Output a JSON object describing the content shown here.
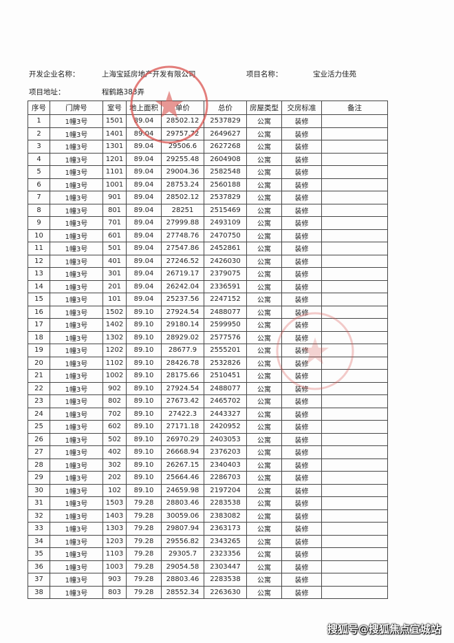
{
  "header": {
    "developer_label": "开发企业名称：",
    "developer": "上海宝延房地产开发有限公司",
    "project_label": "项目名称：",
    "project": "宝业活力佳苑",
    "address_label": "项目地址：",
    "address": "程鹤路383弄"
  },
  "table": {
    "columns": [
      "序号",
      "门牌号",
      "室号",
      "地上面积",
      "单价",
      "总价",
      "房屋类型",
      "交房标准",
      "备注"
    ],
    "rows": [
      [
        "1",
        "1幢3号",
        "1501",
        "89.04",
        "28502.12",
        "2537829",
        "公寓",
        "装修",
        ""
      ],
      [
        "2",
        "1幢3号",
        "1401",
        "89.04",
        "29757.72",
        "2649627",
        "公寓",
        "装修",
        ""
      ],
      [
        "3",
        "1幢3号",
        "1301",
        "89.04",
        "29506.6",
        "2627268",
        "公寓",
        "装修",
        ""
      ],
      [
        "4",
        "1幢3号",
        "1201",
        "89.04",
        "29255.48",
        "2604908",
        "公寓",
        "装修",
        ""
      ],
      [
        "5",
        "1幢3号",
        "1101",
        "89.04",
        "29004.36",
        "2582548",
        "公寓",
        "装修",
        ""
      ],
      [
        "6",
        "1幢3号",
        "1001",
        "89.04",
        "28753.24",
        "2560188",
        "公寓",
        "装修",
        ""
      ],
      [
        "7",
        "1幢3号",
        "901",
        "89.04",
        "28502.12",
        "2537829",
        "公寓",
        "装修",
        ""
      ],
      [
        "8",
        "1幢3号",
        "801",
        "89.04",
        "28251",
        "2515469",
        "公寓",
        "装修",
        ""
      ],
      [
        "9",
        "1幢3号",
        "701",
        "89.04",
        "27999.88",
        "2493109",
        "公寓",
        "装修",
        ""
      ],
      [
        "10",
        "1幢3号",
        "601",
        "89.04",
        "27748.76",
        "2470750",
        "公寓",
        "装修",
        ""
      ],
      [
        "11",
        "1幢3号",
        "501",
        "89.04",
        "27547.86",
        "2452861",
        "公寓",
        "装修",
        ""
      ],
      [
        "12",
        "1幢3号",
        "401",
        "89.04",
        "27246.52",
        "2426030",
        "公寓",
        "装修",
        ""
      ],
      [
        "13",
        "1幢3号",
        "301",
        "89.04",
        "26719.17",
        "2379075",
        "公寓",
        "装修",
        ""
      ],
      [
        "14",
        "1幢3号",
        "201",
        "89.04",
        "26242.04",
        "2336591",
        "公寓",
        "装修",
        ""
      ],
      [
        "15",
        "1幢3号",
        "101",
        "89.04",
        "25237.56",
        "2247152",
        "公寓",
        "装修",
        ""
      ],
      [
        "16",
        "1幢3号",
        "1502",
        "89.10",
        "27924.54",
        "2488077",
        "公寓",
        "装修",
        ""
      ],
      [
        "17",
        "1幢3号",
        "1402",
        "89.10",
        "29180.14",
        "2599950",
        "公寓",
        "装修",
        ""
      ],
      [
        "18",
        "1幢3号",
        "1302",
        "89.10",
        "28929.02",
        "2577576",
        "公寓",
        "装修",
        ""
      ],
      [
        "19",
        "1幢3号",
        "1202",
        "89.10",
        "28677.9",
        "2555201",
        "公寓",
        "装修",
        ""
      ],
      [
        "20",
        "1幢3号",
        "1102",
        "89.10",
        "28426.78",
        "2532826",
        "公寓",
        "装修",
        ""
      ],
      [
        "21",
        "1幢3号",
        "1002",
        "89.10",
        "28175.66",
        "2510451",
        "公寓",
        "装修",
        ""
      ],
      [
        "22",
        "1幢3号",
        "902",
        "89.10",
        "27924.54",
        "2488077",
        "公寓",
        "装修",
        ""
      ],
      [
        "23",
        "1幢3号",
        "802",
        "89.10",
        "27673.42",
        "2465702",
        "公寓",
        "装修",
        ""
      ],
      [
        "24",
        "1幢3号",
        "702",
        "89.10",
        "27422.3",
        "2443327",
        "公寓",
        "装修",
        ""
      ],
      [
        "25",
        "1幢3号",
        "602",
        "89.10",
        "27171.18",
        "2420952",
        "公寓",
        "装修",
        ""
      ],
      [
        "26",
        "1幢3号",
        "502",
        "89.10",
        "26970.29",
        "2403053",
        "公寓",
        "装修",
        ""
      ],
      [
        "27",
        "1幢3号",
        "402",
        "89.10",
        "26668.94",
        "2376203",
        "公寓",
        "装修",
        ""
      ],
      [
        "28",
        "1幢3号",
        "302",
        "89.10",
        "26267.15",
        "2340403",
        "公寓",
        "装修",
        ""
      ],
      [
        "29",
        "1幢3号",
        "202",
        "89.10",
        "25664.46",
        "2286703",
        "公寓",
        "装修",
        ""
      ],
      [
        "30",
        "1幢3号",
        "102",
        "89.10",
        "24659.98",
        "2197204",
        "公寓",
        "装修",
        ""
      ],
      [
        "31",
        "1幢3号",
        "1503",
        "79.28",
        "28803.46",
        "2283538",
        "公寓",
        "装修",
        ""
      ],
      [
        "32",
        "1幢3号",
        "1403",
        "79.28",
        "30059.06",
        "2383082",
        "公寓",
        "装修",
        ""
      ],
      [
        "33",
        "1幢3号",
        "1303",
        "79.28",
        "29807.94",
        "2363173",
        "公寓",
        "装修",
        ""
      ],
      [
        "34",
        "1幢3号",
        "1203",
        "79.28",
        "29556.82",
        "2343265",
        "公寓",
        "装修",
        ""
      ],
      [
        "35",
        "1幢3号",
        "1103",
        "79.28",
        "29305.7",
        "2323356",
        "公寓",
        "装修",
        ""
      ],
      [
        "36",
        "1幢3号",
        "1003",
        "79.28",
        "29054.58",
        "2303447",
        "公寓",
        "装修",
        ""
      ],
      [
        "37",
        "1幢3号",
        "903",
        "79.28",
        "28803.46",
        "2283538",
        "公寓",
        "装修",
        ""
      ],
      [
        "38",
        "1幢3号",
        "803",
        "79.28",
        "28552.34",
        "2263630",
        "公寓",
        "装修",
        ""
      ]
    ]
  },
  "stamps": [
    "上海宝延房地产开发有限公司"
  ],
  "watermark": "搜狐号@搜狐焦点宜城站",
  "colors": {
    "stamp": "#d9534f",
    "border": "#444444"
  }
}
